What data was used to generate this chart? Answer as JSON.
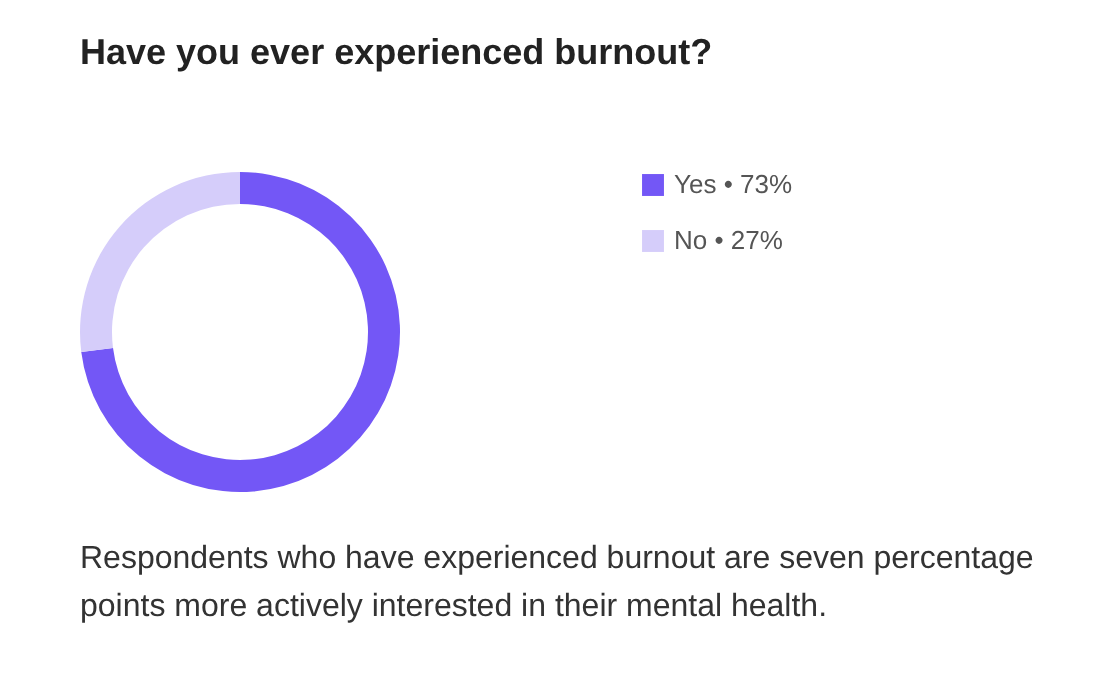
{
  "chart_data": {
    "type": "donut",
    "title": "Have you ever experienced burnout?",
    "categories": [
      "Yes • 73%",
      "No • 27%"
    ],
    "values": [
      73,
      27
    ],
    "colors": [
      "#7357f6",
      "#d5cdfa"
    ],
    "legend": "right",
    "annotations": [
      "Respondents who have experienced burnout are seven percentage points more actively interested in their mental health."
    ]
  }
}
